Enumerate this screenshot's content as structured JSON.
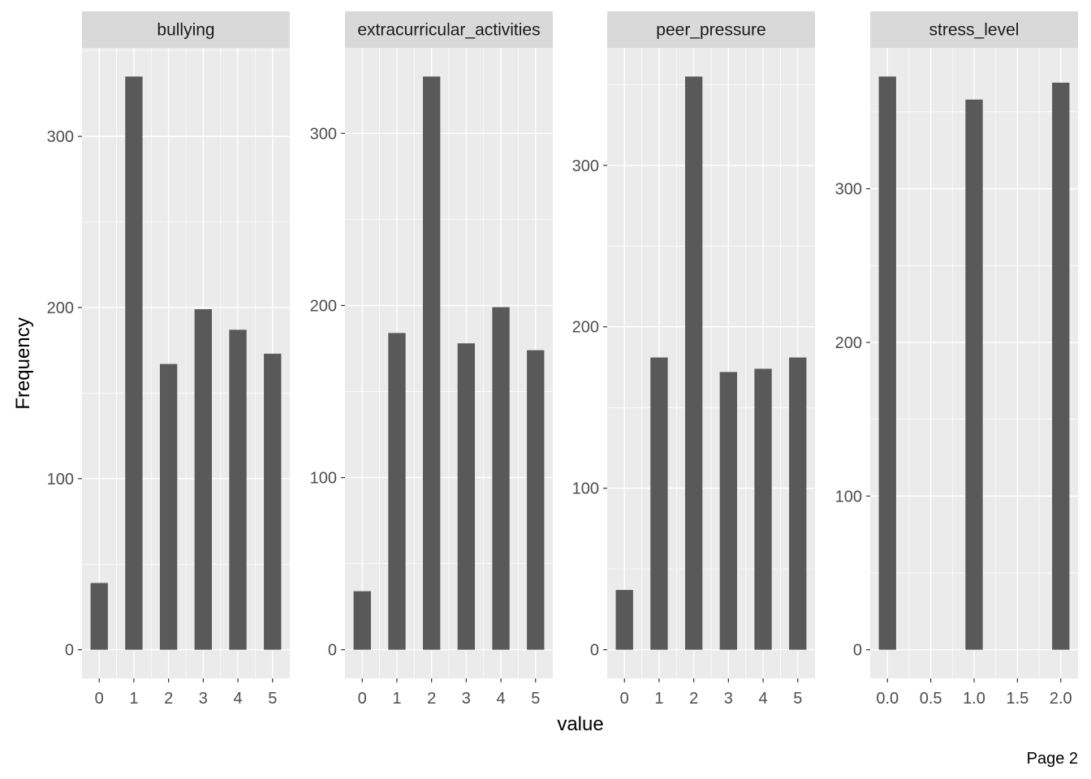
{
  "chart_data": {
    "type": "bar",
    "xlabel": "value",
    "ylabel": "Frequency",
    "footer": "Page 2",
    "colors": {
      "bar": "#595959",
      "panel": "#ebebeb",
      "strip": "#d9d9d9",
      "grid": "#ffffff"
    },
    "facets": [
      {
        "title": "bullying",
        "x": [
          0,
          1,
          2,
          3,
          4,
          5
        ],
        "values": [
          39,
          335,
          167,
          199,
          187,
          173
        ],
        "xticks": [
          "0",
          "1",
          "2",
          "3",
          "4",
          "5"
        ],
        "yticks": [
          "0",
          "100",
          "200",
          "300"
        ]
      },
      {
        "title": "extracurricular_activities",
        "x": [
          0,
          1,
          2,
          3,
          4,
          5
        ],
        "values": [
          34,
          184,
          333,
          178,
          199,
          174
        ],
        "xticks": [
          "0",
          "1",
          "2",
          "3",
          "4",
          "5"
        ],
        "yticks": [
          "0",
          "100",
          "200",
          "300"
        ]
      },
      {
        "title": "peer_pressure",
        "x": [
          0,
          1,
          2,
          3,
          4,
          5
        ],
        "values": [
          37,
          181,
          355,
          172,
          174,
          181
        ],
        "xticks": [
          "0",
          "1",
          "2",
          "3",
          "4",
          "5"
        ],
        "yticks": [
          "0",
          "100",
          "200",
          "300"
        ]
      },
      {
        "title": "stress_level",
        "x": [
          0,
          1,
          2
        ],
        "values": [
          373,
          358,
          369
        ],
        "xticks": [
          "0.0",
          "0.5",
          "1.0",
          "1.5",
          "2.0"
        ],
        "yticks": [
          "0",
          "100",
          "200",
          "300"
        ]
      }
    ]
  }
}
